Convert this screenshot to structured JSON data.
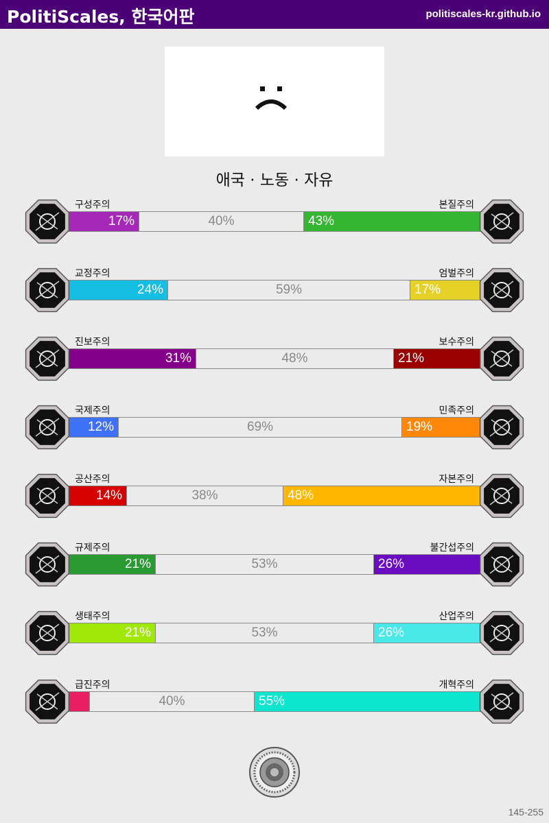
{
  "header": {
    "title": "PolitiScales, 한국어판",
    "site": "politiscales-kr.github.io"
  },
  "result": {
    "emoji_icon": "sad-face-icon",
    "slogan": "애국 · 노동 · 자유"
  },
  "axes": [
    {
      "left_label": "구성주의",
      "right_label": "본질주의",
      "left_value": 17,
      "middle_value": 40,
      "right_value": 43,
      "left_text": "17%",
      "middle_text": "40%",
      "right_text": "43%",
      "left_color": "#a628b8",
      "right_color": "#35b633",
      "left_icon": "eye-icon",
      "right_icon": "flower-icon"
    },
    {
      "left_label": "교정주의",
      "right_label": "엄벌주의",
      "left_value": 24,
      "middle_value": 59,
      "right_value": 17,
      "left_text": "24%",
      "middle_text": "59%",
      "right_text": "17%",
      "left_color": "#15bfe3",
      "right_color": "#e6d126",
      "left_icon": "handshake-icon",
      "right_icon": "prison-bars-icon"
    },
    {
      "left_label": "진보주의",
      "right_label": "보수주의",
      "left_value": 31,
      "middle_value": 48,
      "right_value": 21,
      "left_text": "31%",
      "middle_text": "48%",
      "right_text": "21%",
      "left_color": "#85008a",
      "right_color": "#990000",
      "left_icon": "rocket-hand-icon",
      "right_icon": "pen-nib-icon"
    },
    {
      "left_label": "국제주의",
      "right_label": "민족주의",
      "left_value": 12,
      "middle_value": 69,
      "right_value": 19,
      "left_text": "12%",
      "middle_text": "69%",
      "right_text": "19%",
      "left_color": "#3f71f7",
      "right_color": "#ff8809",
      "left_icon": "globe-laurel-icon",
      "right_icon": "flag-icon"
    },
    {
      "left_label": "공산주의",
      "right_label": "자본주의",
      "left_value": 14,
      "middle_value": 38,
      "right_value": 48,
      "left_text": "14%",
      "middle_text": "38%",
      "right_text": "48%",
      "left_color": "#d50000",
      "right_color": "#ffb700",
      "left_icon": "hammer-sickle-icon",
      "right_icon": "money-bag-icon"
    },
    {
      "left_label": "규제주의",
      "right_label": "불간섭주의",
      "left_value": 21,
      "middle_value": 53,
      "right_value": 26,
      "left_text": "21%",
      "middle_text": "53%",
      "right_text": "26%",
      "left_color": "#2a9a32",
      "right_color": "#6a0cbf",
      "left_icon": "ruler-tools-icon",
      "right_icon": "butterfly-icon"
    },
    {
      "left_label": "생태주의",
      "right_label": "산업주의",
      "left_value": 21,
      "middle_value": 53,
      "right_value": 26,
      "left_text": "21%",
      "middle_text": "53%",
      "right_text": "26%",
      "left_color": "#a0e80a",
      "right_color": "#4ae9e9",
      "left_icon": "sprout-icon",
      "right_icon": "gear-icon"
    },
    {
      "left_label": "급진주의",
      "right_label": "개혁주의",
      "left_value": 5,
      "middle_value": 40,
      "right_value": 55,
      "left_text": "",
      "middle_text": "40%",
      "right_text": "55%",
      "left_color": "#e91e63",
      "right_color": "#0ee5cf",
      "left_icon": "fist-icon",
      "right_icon": "parliament-icon"
    }
  ],
  "footer": {
    "seal_icon": "seal-icon",
    "code": "145-255"
  }
}
